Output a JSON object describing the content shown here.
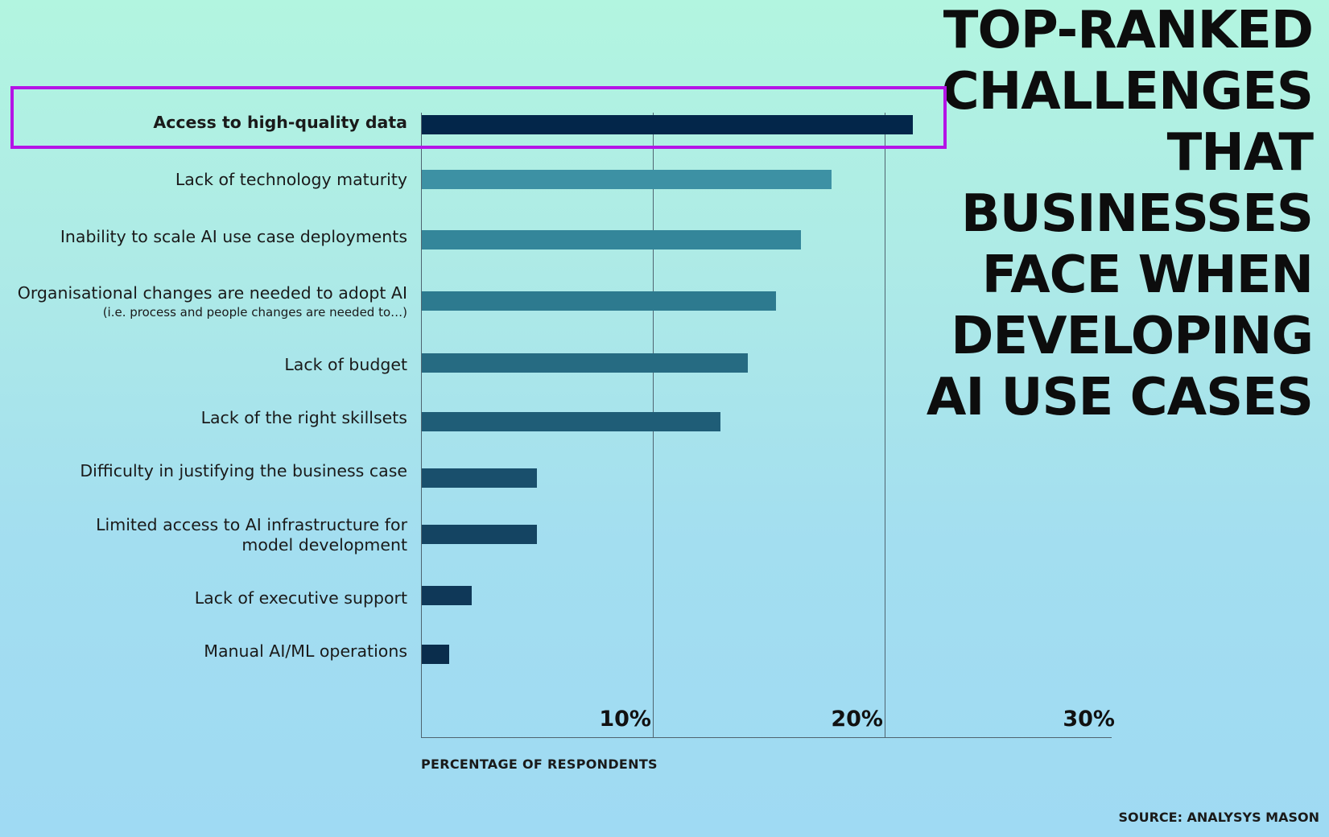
{
  "chart_data": {
    "type": "bar",
    "orientation": "horizontal",
    "title": "TOP-RANKED CHALLENGES THAT BUSINESSES FACE WHEN DEVELOPING AI USE CASES",
    "title_lines": [
      "TOP-RANKED",
      "CHALLENGES",
      "THAT",
      "BUSINESSES",
      "FACE WHEN",
      "DEVELOPING",
      "AI USE CASES"
    ],
    "xlabel": "PERCENTAGE OF RESPONDENTS",
    "ylabel": "",
    "xlim": [
      0,
      30
    ],
    "xticks": [
      10,
      20,
      30
    ],
    "xtick_labels": [
      "10%",
      "20%",
      "30%"
    ],
    "grid": true,
    "categories": [
      {
        "label": "Access to high-quality data",
        "sublabel": "",
        "value": 21.2,
        "color": "#03264a",
        "highlighted": true
      },
      {
        "label": "Lack of technology maturity",
        "sublabel": "",
        "value": 17.7,
        "color": "#3d91a4",
        "highlighted": false
      },
      {
        "label": "Inability to scale AI use case deployments",
        "sublabel": "",
        "value": 16.4,
        "color": "#34869a",
        "highlighted": false
      },
      {
        "label": "Organisational changes are needed to adopt AI",
        "sublabel": "(i.e. process and people changes are needed to…)",
        "value": 15.3,
        "color": "#2d7a8f",
        "highlighted": false
      },
      {
        "label": "Lack of budget",
        "sublabel": "",
        "value": 14.1,
        "color": "#266b82",
        "highlighted": false
      },
      {
        "label": "Lack of the right skillsets",
        "sublabel": "",
        "value": 12.9,
        "color": "#1f5d77",
        "highlighted": false
      },
      {
        "label": "Difficulty in justifying the business case",
        "sublabel": "",
        "value": 5.0,
        "color": "#194f6c",
        "highlighted": false
      },
      {
        "label": "Limited access to AI infrastructure for\nmodel development",
        "sublabel": "",
        "value": 5.0,
        "color": "#144462",
        "highlighted": false
      },
      {
        "label": "Lack of executive support",
        "sublabel": "",
        "value": 2.2,
        "color": "#0f3858",
        "highlighted": false
      },
      {
        "label": "Manual AI/ML operations",
        "sublabel": "",
        "value": 1.2,
        "color": "#0a2d4c",
        "highlighted": false
      }
    ],
    "highlight_color": "#b414e6"
  },
  "source": "SOURCE: ANALYSYS MASON"
}
